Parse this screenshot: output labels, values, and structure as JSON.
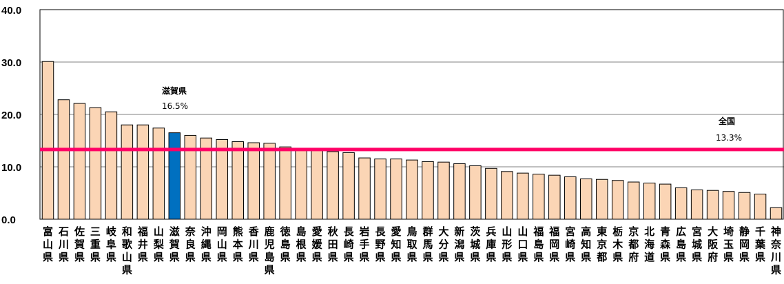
{
  "chart_data": {
    "type": "bar",
    "categories": [
      "富山県",
      "石川県",
      "佐賀県",
      "三重県",
      "岐阜県",
      "和歌山県",
      "福井県",
      "山梨県",
      "滋賀県",
      "奈良県",
      "沖縄県",
      "岡山県",
      "熊本県",
      "香川県",
      "鹿児島県",
      "徳島県",
      "島根県",
      "愛媛県",
      "秋田県",
      "長崎県",
      "岩手県",
      "長野県",
      "愛知県",
      "鳥取県",
      "群馬県",
      "大分県",
      "新潟県",
      "茨城県",
      "兵庫県",
      "山形県",
      "山口県",
      "福島県",
      "福岡県",
      "宮崎県",
      "高知県",
      "東京都",
      "栃木県",
      "京都府",
      "北海道",
      "青森県",
      "広島県",
      "宮城県",
      "大阪府",
      "埼玉県",
      "静岡県",
      "千葉県",
      "神奈川県"
    ],
    "values": [
      30.1,
      22.8,
      22.1,
      21.3,
      20.5,
      18.0,
      18.0,
      17.4,
      16.5,
      16.0,
      15.5,
      15.2,
      14.8,
      14.6,
      14.5,
      13.8,
      13.5,
      13.2,
      12.9,
      12.7,
      11.7,
      11.5,
      11.5,
      11.3,
      11.0,
      10.9,
      10.6,
      10.2,
      9.7,
      9.1,
      8.8,
      8.6,
      8.4,
      8.1,
      7.7,
      7.6,
      7.4,
      7.1,
      6.9,
      6.7,
      6.0,
      5.6,
      5.5,
      5.3,
      5.1,
      4.8,
      2.2
    ],
    "highlight_index": 8,
    "ylim": [
      0,
      40
    ],
    "yticks": [
      "0.0",
      "10.0",
      "20.0",
      "30.0",
      "40.0"
    ],
    "gridlines": true,
    "reference_line": {
      "label": "全国",
      "value_label": "13.3%",
      "value": 13.3
    },
    "annotation": {
      "label": "滋賀県",
      "value_label": "16.5%"
    },
    "colors": {
      "bar": "#FBD5B5",
      "bar_highlight": "#0070C0",
      "bar_stroke": "#000000",
      "reference": "#FF0066",
      "grid": "#808080"
    }
  }
}
